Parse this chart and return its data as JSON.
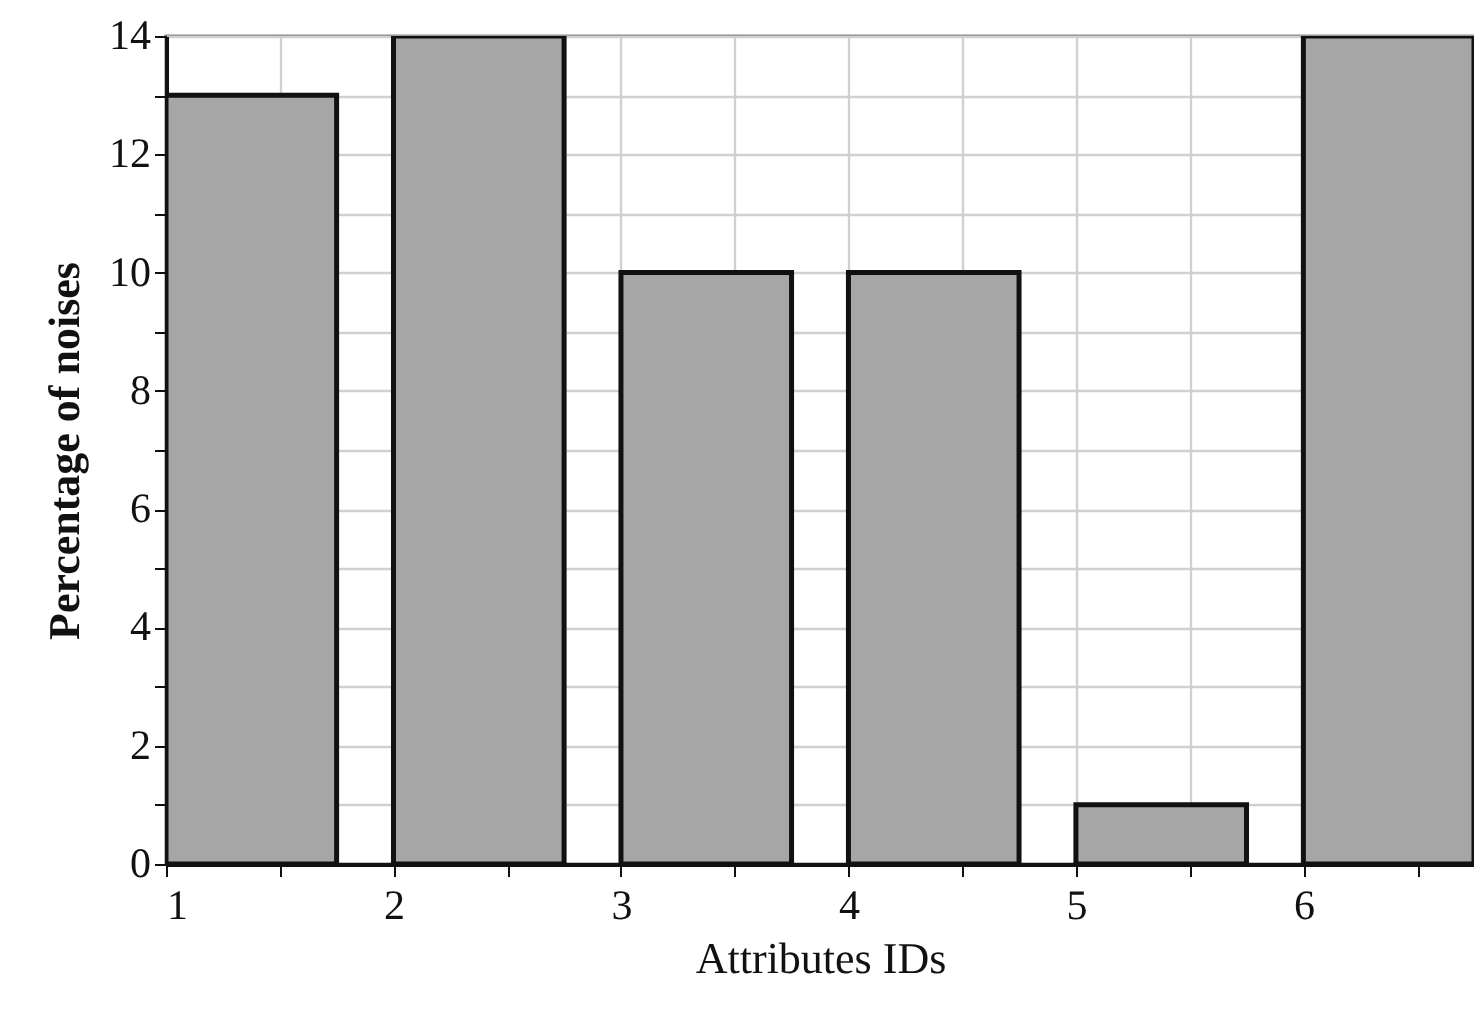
{
  "chart_data": {
    "type": "bar",
    "xlabel": "Attributes IDs",
    "ylabel": "Percentage of noises",
    "x": [
      1.375,
      2.375,
      3.375,
      4.375,
      5.375,
      6.375
    ],
    "values": [
      13,
      14,
      10,
      10,
      1,
      14
    ],
    "color": "#a6a6a6",
    "xlim": [
      1,
      6.75
    ],
    "xticks": [
      1,
      {
        "value": 1.5,
        "label": null
      },
      2,
      {
        "value": 2.5,
        "label": null
      },
      3,
      {
        "value": 3.5,
        "label": null
      },
      4,
      {
        "value": 4.5,
        "label": null
      },
      5,
      {
        "value": 5.5,
        "label": null
      },
      6,
      {
        "value": 6.5,
        "label": null
      }
    ],
    "ylim": [
      0,
      14
    ],
    "yticks": [
      0,
      {
        "value": 1,
        "label": null
      },
      2,
      {
        "value": 3,
        "label": null
      },
      4,
      {
        "value": 5,
        "label": null
      },
      6,
      {
        "value": 7,
        "label": null
      },
      8,
      {
        "value": 9,
        "label": null
      },
      10,
      {
        "value": 11,
        "label": null
      },
      12,
      {
        "value": 13,
        "label": null
      },
      14
    ],
    "grid": true
  }
}
